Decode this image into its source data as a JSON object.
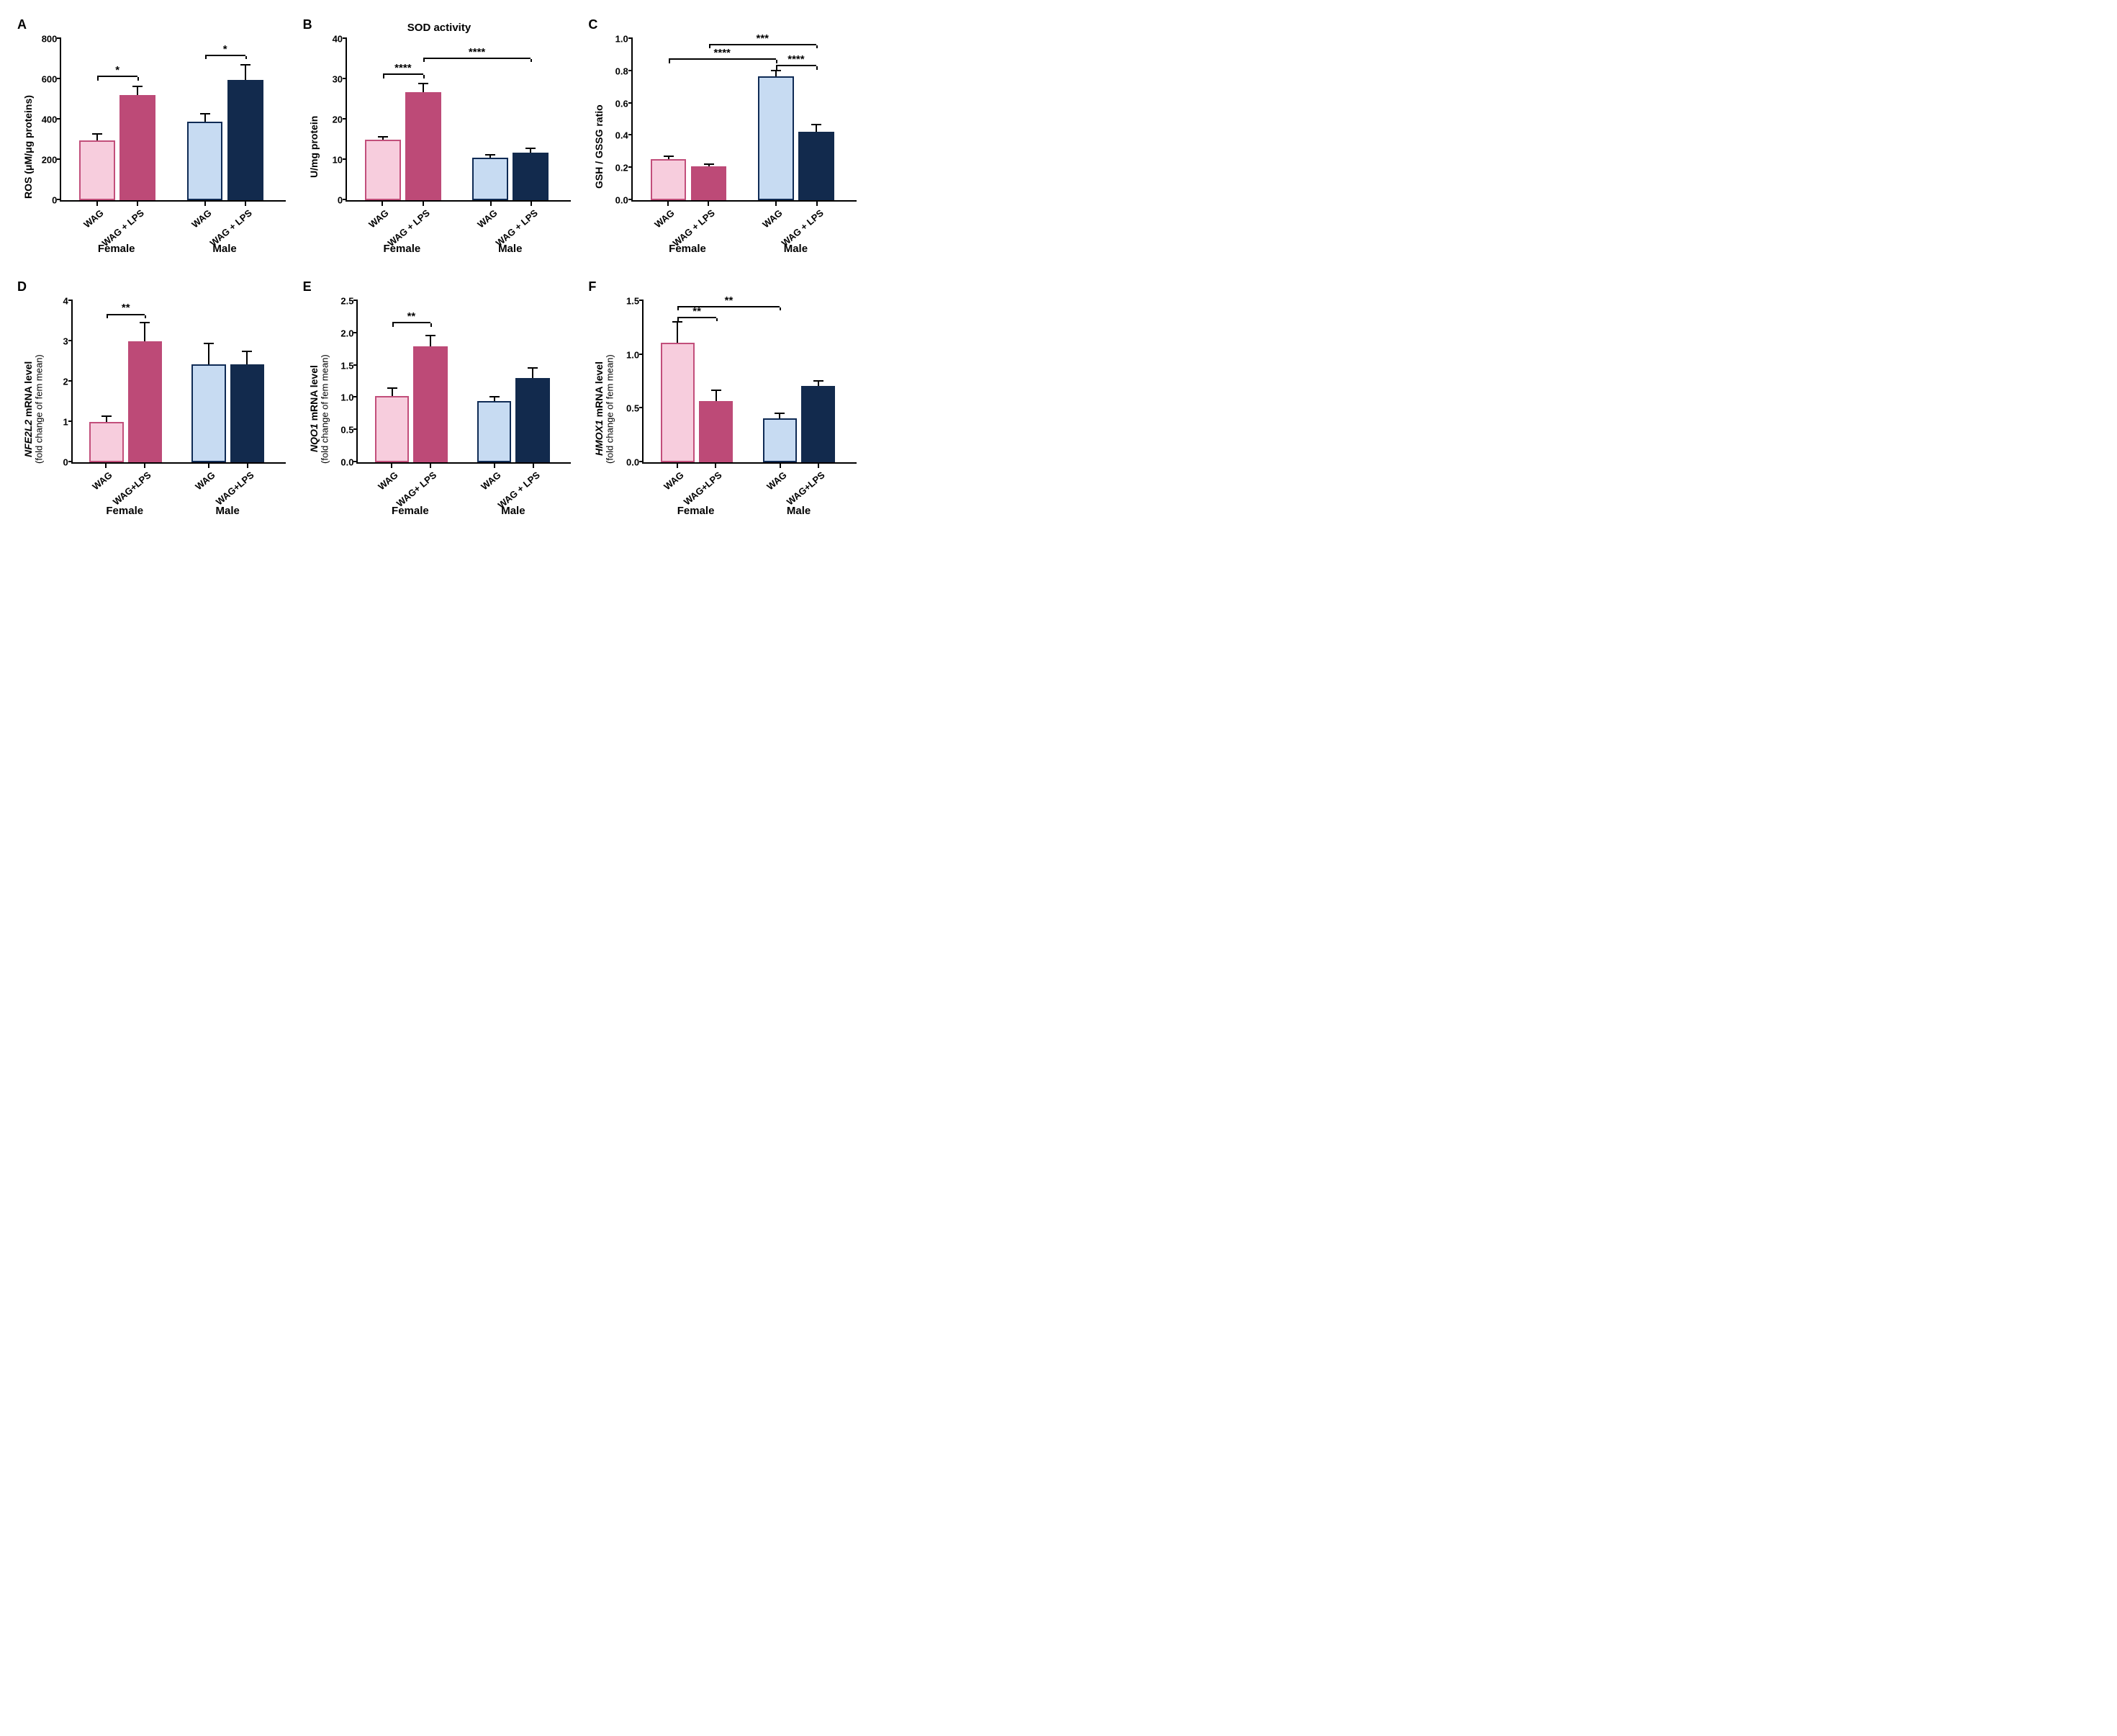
{
  "colors": {
    "female_wag_fill": "#f7cddd",
    "female_wag_border": "#c24f7b",
    "female_lps": "#bd4a77",
    "male_wag_fill": "#c7dbf2",
    "male_wag_border": "#0f2b55",
    "male_lps": "#122a4d",
    "axis": "#000000",
    "background": "#ffffff"
  },
  "layout": {
    "bar_width_pct": 16,
    "group_gap_pct": 10,
    "group1_left_pct": 8,
    "group2_left_pct": 56,
    "err_cap_width": 14
  },
  "font": {
    "panel_label_size": 18,
    "axis_label_size": 14,
    "tick_size": 13
  },
  "panels": [
    {
      "id": "A",
      "title": "",
      "ylabel_html": "ROS (μM/μg proteins)",
      "type": "bar",
      "ylim": [
        0,
        800
      ],
      "ytick_step": 200,
      "y_decimals": 0,
      "groups": [
        "Female",
        "Male"
      ],
      "categories": [
        "WAG",
        "WAG + LPS",
        "WAG",
        "WAG + LPS"
      ],
      "values": [
        295,
        520,
        390,
        595
      ],
      "errors": [
        30,
        42,
        36,
        72
      ],
      "bar_style": [
        "f_open",
        "f_solid",
        "m_open",
        "m_solid"
      ],
      "sig": [
        {
          "from": 0,
          "to": 1,
          "text": "*",
          "y": 610
        },
        {
          "from": 2,
          "to": 3,
          "text": "*",
          "y": 715
        }
      ]
    },
    {
      "id": "B",
      "title": "SOD activity",
      "ylabel_html": "U/mg protein",
      "type": "bar",
      "ylim": [
        0,
        40
      ],
      "ytick_step": 10,
      "y_decimals": 0,
      "groups": [
        "Female",
        "Male"
      ],
      "categories": [
        "WAG",
        "WAG + LPS",
        "WAG",
        "WAG + LPS"
      ],
      "values": [
        15,
        26.8,
        10.5,
        11.7
      ],
      "errors": [
        0.6,
        1.9,
        0.5,
        0.9
      ],
      "bar_style": [
        "f_open",
        "f_solid",
        "m_open",
        "m_solid"
      ],
      "sig": [
        {
          "from": 0,
          "to": 1,
          "text": "****",
          "y": 31
        },
        {
          "from": 1,
          "to": 3,
          "text": "****",
          "y": 35
        }
      ]
    },
    {
      "id": "C",
      "title": "",
      "ylabel_html": "GSH / GSSG ratio",
      "type": "bar",
      "ylim": [
        0,
        1.0
      ],
      "ytick_step": 0.2,
      "y_decimals": 1,
      "groups": [
        "Female",
        "Male"
      ],
      "categories": [
        "WAG",
        "WAG + LPS",
        "WAG",
        "WAG + LPS"
      ],
      "values": [
        0.255,
        0.21,
        0.77,
        0.425
      ],
      "errors": [
        0.015,
        0.008,
        0.03,
        0.04
      ],
      "bar_style": [
        "f_open",
        "f_solid",
        "m_open",
        "m_solid"
      ],
      "sig": [
        {
          "from": 0,
          "to": 2,
          "text": "****",
          "y": 0.87
        },
        {
          "from": 2,
          "to": 3,
          "text": "****",
          "y": 0.83
        },
        {
          "from": 1,
          "to": 3,
          "text": "***",
          "y": 0.96
        }
      ]
    },
    {
      "id": "D",
      "title": "",
      "ylabel_html": "<span style=\"font-style:italic\">NFE2L2</span> mRNA level",
      "ylabel_sub": "(fold change of fem mean)",
      "type": "bar",
      "ylim": [
        0,
        4
      ],
      "ytick_step": 1,
      "y_decimals": 0,
      "groups": [
        "Female",
        "Male"
      ],
      "categories": [
        "WAG",
        "WAG+LPS",
        "WAG",
        "WAG+LPS"
      ],
      "values": [
        1.0,
        3.0,
        2.43,
        2.42
      ],
      "errors": [
        0.13,
        0.44,
        0.49,
        0.32
      ],
      "bar_style": [
        "f_open",
        "f_solid",
        "m_open",
        "m_solid"
      ],
      "sig": [
        {
          "from": 0,
          "to": 1,
          "text": "**",
          "y": 3.65
        }
      ]
    },
    {
      "id": "E",
      "title": "",
      "ylabel_html": "<span style=\"font-style:italic\">NQO1</span> mRNA level",
      "ylabel_sub": "(fold change of fem mean)",
      "type": "bar",
      "ylim": [
        0,
        2.5
      ],
      "ytick_step": 0.5,
      "y_decimals": 1,
      "groups": [
        "Female",
        "Male"
      ],
      "categories": [
        "WAG",
        "WAG+ LPS",
        "WAG",
        "WAG + LPS"
      ],
      "values": [
        1.03,
        1.8,
        0.95,
        1.31
      ],
      "errors": [
        0.11,
        0.15,
        0.06,
        0.14
      ],
      "bar_style": [
        "f_open",
        "f_solid",
        "m_open",
        "m_solid"
      ],
      "sig": [
        {
          "from": 0,
          "to": 1,
          "text": "**",
          "y": 2.15
        }
      ]
    },
    {
      "id": "F",
      "title": "",
      "ylabel_html": "<span style=\"font-style:italic\">HMOX1</span> mRNA level",
      "ylabel_sub": "(fold change of fem mean)",
      "type": "bar",
      "ylim": [
        0,
        1.5
      ],
      "ytick_step": 0.5,
      "y_decimals": 1,
      "groups": [
        "Female",
        "Male"
      ],
      "categories": [
        "WAG",
        "WAG+LPS",
        "WAG",
        "WAG+LPS"
      ],
      "values": [
        1.11,
        0.57,
        0.41,
        0.71
      ],
      "errors": [
        0.19,
        0.09,
        0.04,
        0.04
      ],
      "bar_style": [
        "f_open",
        "f_solid",
        "m_open",
        "m_solid"
      ],
      "sig": [
        {
          "from": 0,
          "to": 1,
          "text": "**",
          "y": 1.34
        },
        {
          "from": 0,
          "to": 2,
          "text": "**",
          "y": 1.44
        }
      ]
    }
  ]
}
